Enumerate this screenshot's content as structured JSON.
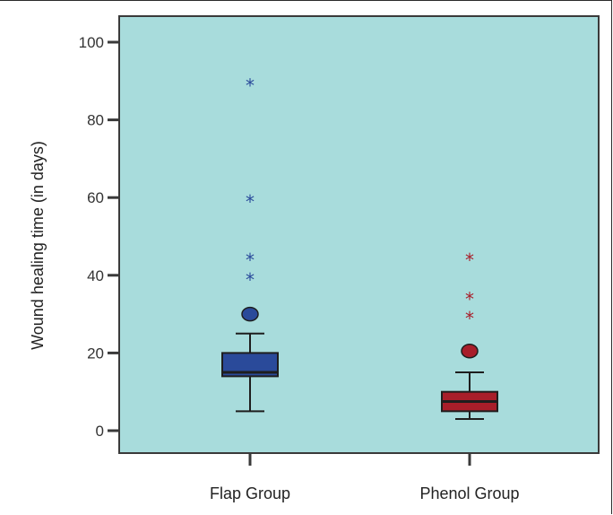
{
  "chart_data": {
    "type": "boxplot",
    "title": "",
    "xlabel": "",
    "ylabel": "Wound healing time (in days)",
    "ylim": [
      0,
      100
    ],
    "yticks": [
      "0",
      "20",
      "40",
      "60",
      "80",
      "100"
    ],
    "grid": false,
    "background_color": "#a8dcdc",
    "categories": [
      "Flap Group",
      "Phenol Group"
    ],
    "series": [
      {
        "category": "Flap Group",
        "color": "#2a4a9a",
        "whisker_low": 5,
        "q1": 14,
        "median": 15,
        "q3": 20,
        "whisker_high": 25,
        "outliers": [
          30
        ],
        "extremes": [
          40,
          45,
          60,
          90
        ]
      },
      {
        "category": "Phenol Group",
        "color": "#a81e2a",
        "whisker_low": 3,
        "q1": 5,
        "median": 7.5,
        "q3": 10,
        "whisker_high": 15,
        "outliers": [
          20.5
        ],
        "extremes": [
          30,
          35,
          45
        ]
      }
    ]
  }
}
